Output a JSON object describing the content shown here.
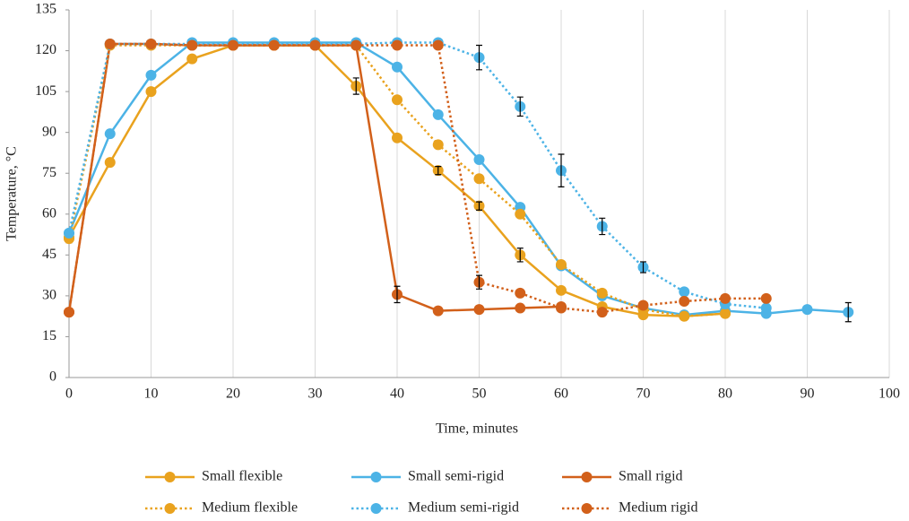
{
  "chart_data": {
    "type": "line",
    "xlabel": "Time, minutes",
    "ylabel": "Temperature, °C",
    "x": [
      0,
      5,
      10,
      15,
      20,
      25,
      30,
      35,
      40,
      45,
      50,
      55,
      60,
      65,
      70,
      75,
      80,
      85,
      90,
      95
    ],
    "xlim": [
      0,
      100
    ],
    "xticks": [
      0,
      10,
      20,
      30,
      40,
      50,
      60,
      70,
      80,
      90,
      100
    ],
    "ylim": [
      0,
      135
    ],
    "yticks": [
      0,
      15,
      30,
      45,
      60,
      75,
      90,
      105,
      120,
      135
    ],
    "grid": "x",
    "legend": "bottom",
    "series": [
      {
        "name": "Small flexible",
        "color": "#E9A21E",
        "dash": "solid",
        "values": [
          51.5,
          79,
          105,
          117,
          122,
          122,
          122,
          107,
          88,
          76,
          63,
          45,
          32,
          26,
          23,
          22.5,
          23.5,
          null,
          null,
          null
        ],
        "errors": [
          2,
          null,
          null,
          null,
          null,
          null,
          null,
          3,
          null,
          1.5,
          1.5,
          2.5,
          null,
          null,
          null,
          null,
          null,
          null,
          null,
          null
        ]
      },
      {
        "name": "Small semi-rigid",
        "color": "#4CB3E6",
        "dash": "solid",
        "values": [
          53,
          89.5,
          111,
          123,
          123,
          123,
          123,
          123,
          114,
          96.5,
          80,
          62.5,
          41,
          30,
          25.5,
          23,
          24.5,
          23.5,
          25,
          24
        ],
        "errors": [
          null,
          null,
          null,
          null,
          null,
          null,
          null,
          null,
          null,
          null,
          null,
          null,
          null,
          null,
          null,
          null,
          null,
          null,
          null,
          3.5
        ]
      },
      {
        "name": "Small rigid",
        "color": "#D2601A",
        "dash": "solid",
        "values": [
          24,
          122.5,
          122.5,
          122,
          122,
          122,
          122,
          122,
          30.5,
          24.5,
          25,
          25.5,
          26,
          null,
          null,
          null,
          null,
          null,
          null,
          null
        ],
        "errors": [
          null,
          null,
          null,
          null,
          null,
          null,
          null,
          null,
          3,
          null,
          null,
          null,
          null,
          null,
          null,
          null,
          null,
          null,
          null,
          null
        ]
      },
      {
        "name": "Medium flexible",
        "color": "#E9A21E",
        "dash": "dotted",
        "values": [
          51,
          122,
          122,
          122,
          122,
          122,
          122,
          122,
          102,
          85.5,
          73,
          60,
          41.5,
          31,
          25,
          22.5,
          23.5,
          null,
          null,
          null
        ],
        "errors": [
          null,
          null,
          null,
          null,
          null,
          null,
          null,
          null,
          null,
          null,
          null,
          null,
          null,
          null,
          null,
          null,
          null,
          null,
          null,
          null
        ]
      },
      {
        "name": "Medium semi-rigid",
        "color": "#4CB3E6",
        "dash": "dotted",
        "values": [
          53,
          122.5,
          122.5,
          122.5,
          122.5,
          122.5,
          122.5,
          122.5,
          123,
          123,
          117.5,
          99.5,
          76,
          55.5,
          40.5,
          31.5,
          27,
          25.5,
          null,
          null
        ],
        "errors": [
          null,
          null,
          null,
          null,
          null,
          null,
          null,
          null,
          null,
          null,
          4.5,
          3.5,
          6,
          3,
          2,
          null,
          null,
          null,
          null,
          null
        ]
      },
      {
        "name": "Medium rigid",
        "color": "#D2601A",
        "dash": "dotted",
        "values": [
          24,
          122.5,
          122.5,
          122,
          122,
          122,
          122,
          122,
          122,
          122,
          35,
          31,
          25.5,
          24,
          26.5,
          28,
          29,
          29,
          null,
          null
        ],
        "errors": [
          null,
          null,
          null,
          null,
          null,
          null,
          null,
          null,
          null,
          null,
          2.5,
          null,
          null,
          null,
          null,
          null,
          null,
          null,
          null,
          null
        ]
      }
    ]
  }
}
